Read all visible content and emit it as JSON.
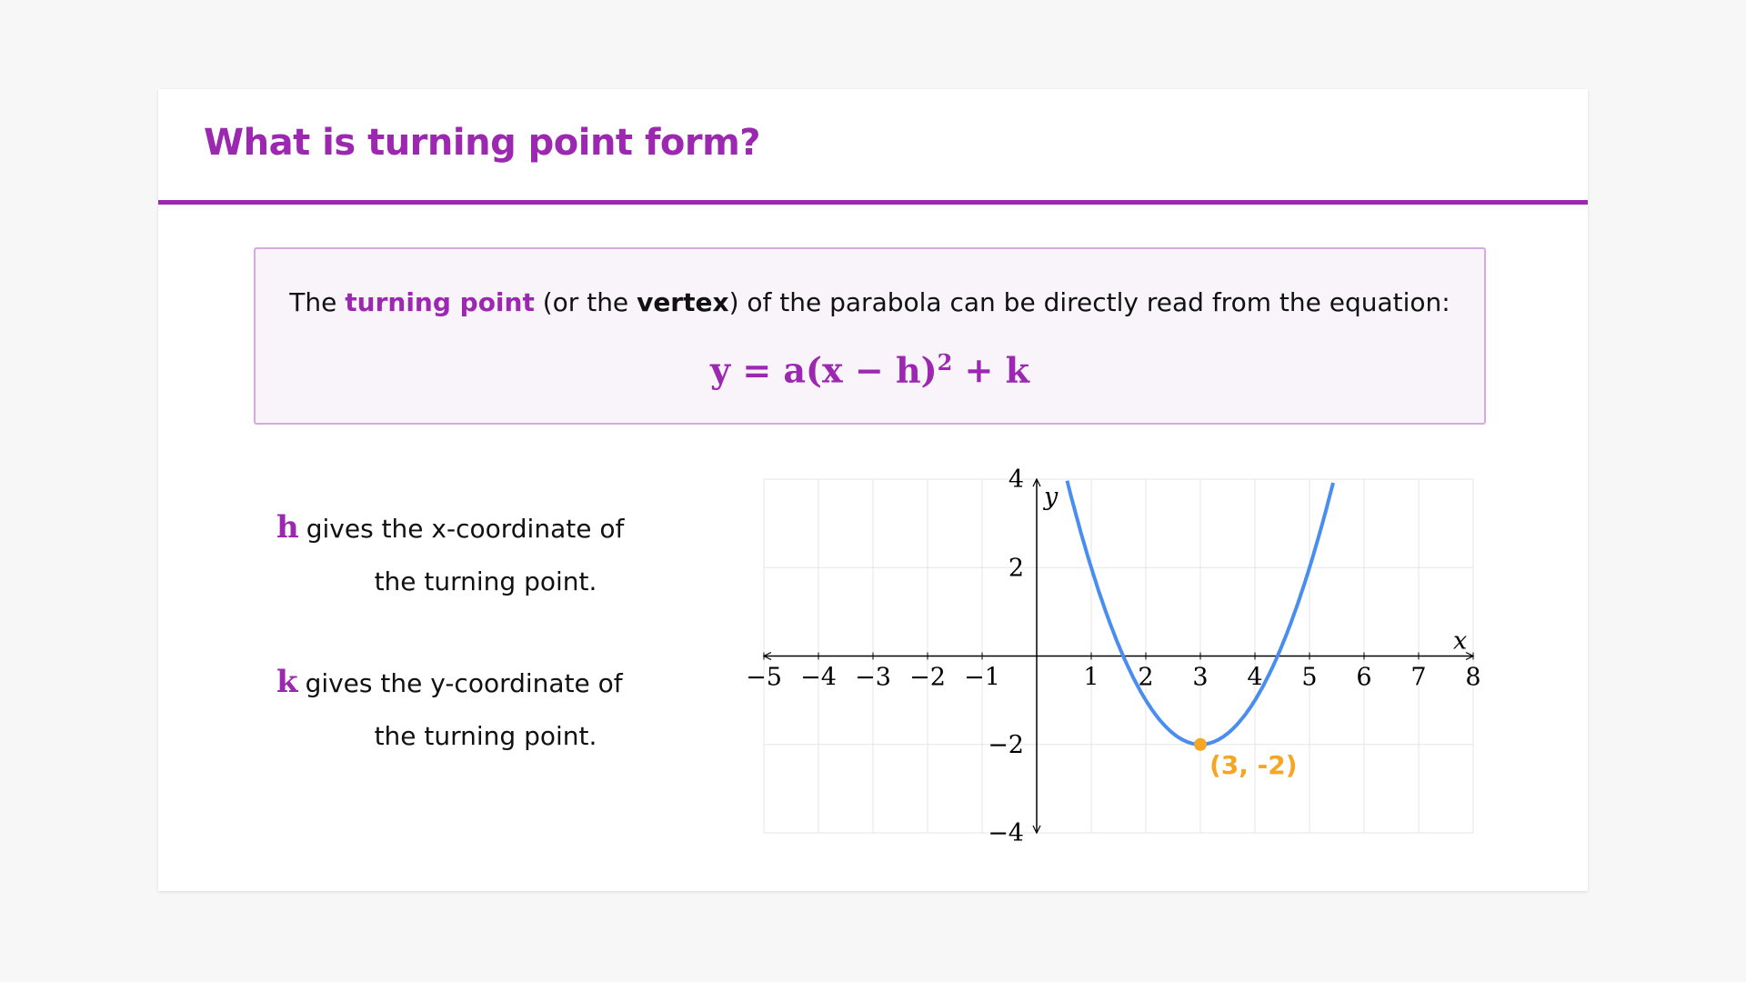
{
  "slide": {
    "title": "What is turning point form?",
    "intro": {
      "before": "The ",
      "highlight": "turning point",
      "middle": " (or the ",
      "bold": "vertex",
      "after": ") of the parabola can be directly read from the equation:"
    },
    "equation": {
      "main": "y = a(x − h)",
      "exp": "2",
      "tail": " + k"
    },
    "notes": [
      {
        "var": "h",
        "line1": "gives the x-coordinate of",
        "line2": "the turning point."
      },
      {
        "var": "k",
        "line1": "gives the y-coordinate of",
        "line2": "the turning point."
      }
    ]
  },
  "colors": {
    "accent": "#9c27b0",
    "curve": "#4a8df0",
    "vertex": "#f5a623"
  },
  "chart_data": {
    "type": "line",
    "function": "y = (x - 3)^2 - 2",
    "a": 1,
    "h": 3,
    "k": -2,
    "xlabel": "x",
    "ylabel": "y",
    "xlim": [
      -5,
      8
    ],
    "ylim": [
      -4,
      4
    ],
    "xticks": [
      -5,
      -4,
      -3,
      -2,
      -1,
      1,
      2,
      3,
      4,
      5,
      6,
      7,
      8
    ],
    "yticks": [
      -4,
      -2,
      2,
      4
    ],
    "grid": true,
    "vertex": {
      "x": 3,
      "y": -2,
      "label": "(3, -2)"
    }
  }
}
